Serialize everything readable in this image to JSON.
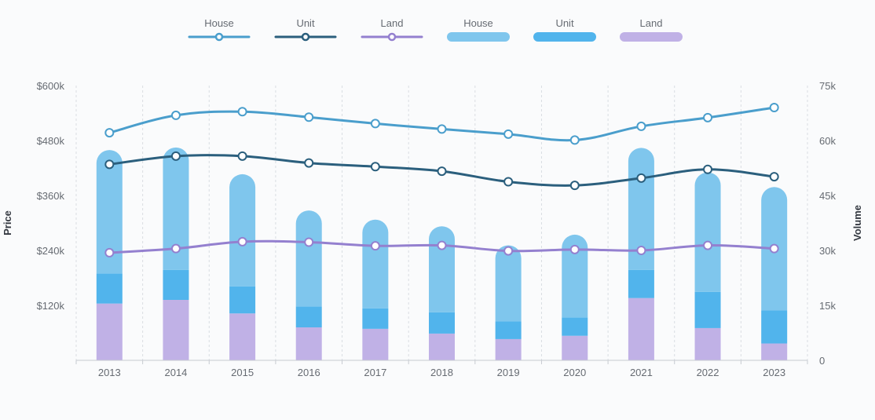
{
  "chart_data": {
    "type": "bar+line",
    "categories": [
      "2013",
      "2014",
      "2015",
      "2016",
      "2017",
      "2018",
      "2019",
      "2020",
      "2021",
      "2022",
      "2023"
    ],
    "y_left": {
      "label": "Price",
      "range": [
        0,
        600000
      ],
      "ticks": [
        0,
        120000,
        240000,
        360000,
        480000,
        600000
      ],
      "tick_labels": [
        "",
        "$120k",
        "$240k",
        "$360k",
        "$480k",
        "$600k"
      ]
    },
    "y_right": {
      "label": "Volume",
      "range": [
        0,
        75000
      ],
      "ticks": [
        0,
        15000,
        30000,
        45000,
        60000,
        75000
      ],
      "tick_labels": [
        "0",
        "15k",
        "30k",
        "45k",
        "60k",
        "75k"
      ]
    },
    "bar_series": [
      {
        "name": "Land",
        "color": "#c0b1e6",
        "values": [
          15500,
          16500,
          12800,
          9000,
          8600,
          7300,
          5800,
          6700,
          17000,
          8800,
          4600
        ]
      },
      {
        "name": "Unit",
        "color": "#51b4ec",
        "values": [
          8200,
          8200,
          7400,
          5700,
          5600,
          5800,
          4800,
          5000,
          7700,
          9900,
          9000
        ]
      },
      {
        "name": "House",
        "color": "#7fc6ed",
        "values": [
          33700,
          33400,
          30600,
          26200,
          24200,
          23500,
          20800,
          22600,
          33300,
          32600,
          33700
        ]
      }
    ],
    "line_series": [
      {
        "name": "House",
        "color": "#4a9ecc",
        "values": [
          497000,
          535000,
          543000,
          531000,
          517000,
          505000,
          494000,
          481000,
          511000,
          530000,
          552000
        ]
      },
      {
        "name": "Unit",
        "color": "#2b5f7d",
        "values": [
          428000,
          446000,
          446000,
          431000,
          423000,
          413000,
          390000,
          382000,
          398000,
          417000,
          401000
        ]
      },
      {
        "name": "Land",
        "color": "#9480cf",
        "values": [
          235000,
          244000,
          259000,
          258000,
          250000,
          251000,
          239000,
          242000,
          240000,
          251000,
          244000
        ]
      }
    ],
    "legend": {
      "placement": "top-center",
      "items": [
        {
          "label": "House",
          "kind": "line",
          "color": "#4a9ecc"
        },
        {
          "label": "Unit",
          "kind": "line",
          "color": "#2b5f7d"
        },
        {
          "label": "Land",
          "kind": "line",
          "color": "#9480cf"
        },
        {
          "label": "House",
          "kind": "bar",
          "color": "#7fc6ed"
        },
        {
          "label": "Unit",
          "kind": "bar",
          "color": "#51b4ec"
        },
        {
          "label": "Land",
          "kind": "bar",
          "color": "#c0b1e6"
        }
      ]
    }
  }
}
